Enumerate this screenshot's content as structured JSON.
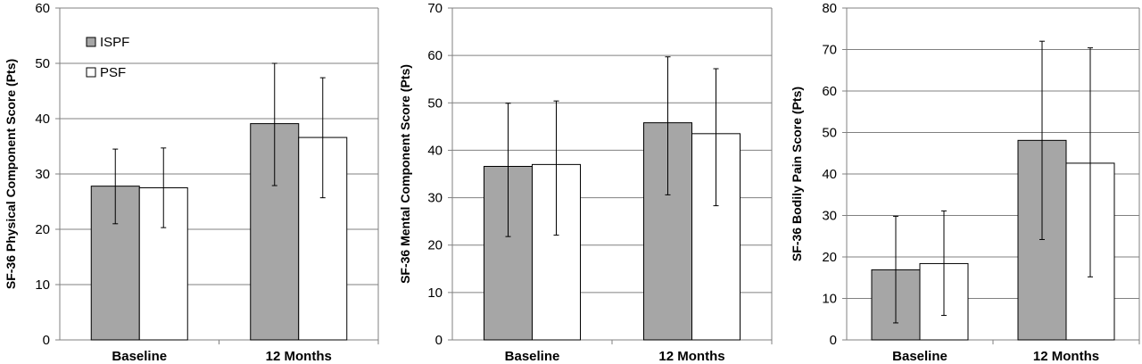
{
  "chart_data": [
    {
      "type": "bar",
      "ylabel": "SF-36 Physical Component Score (Pts)",
      "categories": [
        "Baseline",
        "12 Months"
      ],
      "ylim": [
        0,
        60
      ],
      "yticks": [
        0,
        10,
        20,
        30,
        40,
        50,
        60
      ],
      "grid": true,
      "legend": "top-left",
      "series": [
        {
          "name": "ISPF",
          "color": "#a6a6a6",
          "values": [
            27.8,
            39.1
          ],
          "err_low": [
            21.0,
            27.9
          ],
          "err_high": [
            34.5,
            50.0
          ]
        },
        {
          "name": "PSF",
          "color": "#ffffff",
          "values": [
            27.5,
            36.6
          ],
          "err_low": [
            20.3,
            25.7
          ],
          "err_high": [
            34.7,
            47.4
          ]
        }
      ]
    },
    {
      "type": "bar",
      "ylabel": "SF-36 Mental Component  Score (Pts)",
      "categories": [
        "Baseline",
        "12 Months"
      ],
      "ylim": [
        0,
        70
      ],
      "yticks": [
        0,
        10,
        20,
        30,
        40,
        50,
        60,
        70
      ],
      "grid": true,
      "series": [
        {
          "name": "ISPF",
          "color": "#a6a6a6",
          "values": [
            36.6,
            45.8
          ],
          "err_low": [
            21.8,
            30.6
          ],
          "err_high": [
            49.9,
            59.7
          ]
        },
        {
          "name": "PSF",
          "color": "#ffffff",
          "values": [
            37.0,
            43.5
          ],
          "err_low": [
            22.1,
            28.3
          ],
          "err_high": [
            50.4,
            57.2
          ]
        }
      ]
    },
    {
      "type": "bar",
      "ylabel": "SF-36 Bodily Pain  Score (Pts)",
      "categories": [
        "Baseline",
        "12 Months"
      ],
      "ylim": [
        0,
        80
      ],
      "yticks": [
        0,
        10,
        20,
        30,
        40,
        50,
        60,
        70,
        80
      ],
      "grid": true,
      "series": [
        {
          "name": "ISPF",
          "color": "#a6a6a6",
          "values": [
            16.9,
            48.1
          ],
          "err_low": [
            4.1,
            24.2
          ],
          "err_high": [
            29.8,
            72.0
          ]
        },
        {
          "name": "PSF",
          "color": "#ffffff",
          "values": [
            18.4,
            42.6
          ],
          "err_low": [
            5.9,
            15.2
          ],
          "err_high": [
            31.1,
            70.4
          ]
        }
      ]
    }
  ]
}
